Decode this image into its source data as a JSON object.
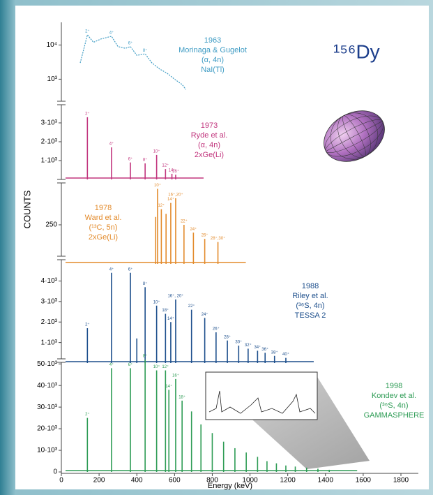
{
  "chart_data": {
    "type": "stacked-spectra",
    "title": "¹⁵⁶Dy",
    "xlabel": "Energy (keV)",
    "ylabel": "COUNTS",
    "xlim": [
      0,
      1800
    ],
    "xticks": [
      0,
      200,
      400,
      600,
      800,
      1000,
      1200,
      1400,
      1600,
      1800
    ],
    "panels": [
      {
        "type": "line",
        "year": "1963",
        "authors": "Morinaga & Gugelot",
        "reaction": "(α, 4n)",
        "detector": "NaI(Tl)",
        "color": "#3f9cc4",
        "log": true,
        "ylim": [
          300,
          40000
        ],
        "yticks": [
          {
            "value": 10000,
            "label": "10⁴"
          },
          {
            "value": 1000,
            "label": "10³"
          }
        ],
        "x": [
          100,
          120,
          138,
          170,
          210,
          266,
          300,
          340,
          366,
          400,
          444,
          480,
          520,
          560,
          600,
          640,
          660
        ],
        "values": [
          3000,
          8000,
          20000,
          12000,
          15000,
          18000,
          9000,
          8000,
          9000,
          5000,
          5500,
          3000,
          2000,
          1500,
          1000,
          700,
          500
        ],
        "peak_labels": [
          null,
          null,
          "2⁺",
          null,
          null,
          "4⁺",
          null,
          null,
          "6⁺",
          null,
          "8⁺",
          null,
          null,
          null,
          null,
          null,
          null
        ]
      },
      {
        "type": "spike",
        "year": "1973",
        "authors": "Ryde et al.",
        "reaction": "(α, 4n)",
        "detector": "2xGe(Li)",
        "color": "#c2367e",
        "log": false,
        "ylim": [
          0,
          3500
        ],
        "yticks": [
          {
            "value": 3000,
            "label": "3·10³"
          },
          {
            "value": 2000,
            "label": "2·10³"
          },
          {
            "value": 1000,
            "label": "1·10³"
          }
        ],
        "x": [
          138,
          266,
          366,
          444,
          505,
          552,
          586,
          606
        ],
        "values": [
          3300,
          1700,
          900,
          850,
          1300,
          550,
          300,
          250
        ],
        "peak_labels": [
          "2⁺",
          "4⁺",
          "6⁺",
          "8⁺",
          "10⁺",
          "12⁺",
          "14⁺",
          "16⁺"
        ]
      },
      {
        "type": "spike",
        "year": "1978",
        "authors": "Ward et al.",
        "reaction": "(¹³C, 5n)",
        "detector": "2xGe(Li)",
        "color": "#e38b2c",
        "log": false,
        "ylim": [
          0,
          500
        ],
        "yticks": [
          250
        ],
        "x": [
          500,
          510,
          530,
          555,
          580,
          606,
          650,
          700,
          760,
          830
        ],
        "values": [
          300,
          480,
          350,
          320,
          390,
          420,
          250,
          200,
          160,
          140
        ],
        "peak_labels": [
          null,
          "10⁺",
          "12⁺",
          null,
          "14⁺",
          "16⁺,20⁺",
          "22⁺",
          "24⁺",
          "26⁺",
          "28⁺,30⁺"
        ]
      },
      {
        "type": "spike",
        "year": "1988",
        "authors": "Riley et al.",
        "reaction": "(³⁶S, 4n)",
        "detector": "TESSA 2",
        "color": "#1d4f8c",
        "log": false,
        "ylim": [
          0,
          4800
        ],
        "yticks": [
          {
            "value": 4000,
            "label": "4·10³"
          },
          {
            "value": 3000,
            "label": "3·10³"
          },
          {
            "value": 2000,
            "label": "2·10³"
          },
          {
            "value": 1000,
            "label": "1·10³"
          }
        ],
        "x": [
          138,
          266,
          366,
          400,
          444,
          505,
          552,
          580,
          606,
          690,
          760,
          820,
          880,
          940,
          990,
          1040,
          1080,
          1130,
          1190
        ],
        "values": [
          1700,
          4400,
          4400,
          1200,
          3700,
          2800,
          2400,
          2000,
          3100,
          2600,
          2200,
          1500,
          1100,
          850,
          700,
          600,
          500,
          350,
          250
        ],
        "peak_labels": [
          "2⁺",
          "4⁺",
          "6⁺",
          null,
          "8⁺",
          "10⁺",
          "18⁺",
          "14⁺",
          "16⁺, 20⁺",
          "22⁺",
          "24⁺",
          "26⁺",
          "28⁺",
          "30⁺",
          "32⁺",
          "34⁺",
          "36⁺",
          "38⁺",
          "40⁺"
        ]
      },
      {
        "type": "spike",
        "year": "1998",
        "authors": "Kondev et al.",
        "reaction": "(³⁶S, 4n)",
        "detector": "GAMMASPHERE",
        "color": "#2e9c55",
        "log": false,
        "ylim": [
          0,
          52000
        ],
        "yticks": [
          {
            "value": 50000,
            "label": "50·10³"
          },
          {
            "value": 40000,
            "label": "40·10³"
          },
          {
            "value": 30000,
            "label": "30·10³"
          },
          {
            "value": 20000,
            "label": "20·10³"
          },
          {
            "value": 10000,
            "label": "10·10³"
          },
          0
        ],
        "x": [
          138,
          266,
          366,
          444,
          505,
          552,
          570,
          606,
          640,
          690,
          740,
          800,
          860,
          920,
          980,
          1040,
          1090,
          1140,
          1190,
          1240,
          1300,
          1360,
          1420
        ],
        "values": [
          25000,
          48000,
          48000,
          52000,
          47000,
          47000,
          38000,
          43000,
          33000,
          28000,
          22000,
          18000,
          14000,
          11000,
          9000,
          7000,
          5000,
          4000,
          3000,
          2500,
          2000,
          1500,
          1000
        ],
        "peak_labels": [
          "2⁺",
          "4⁺",
          "6⁺",
          "8⁺",
          "10⁺",
          "12⁺",
          "14⁺",
          "16⁺",
          "18⁺",
          null,
          null,
          null,
          null,
          null,
          null,
          null,
          null,
          null,
          null,
          null,
          null,
          null,
          null
        ]
      }
    ]
  }
}
